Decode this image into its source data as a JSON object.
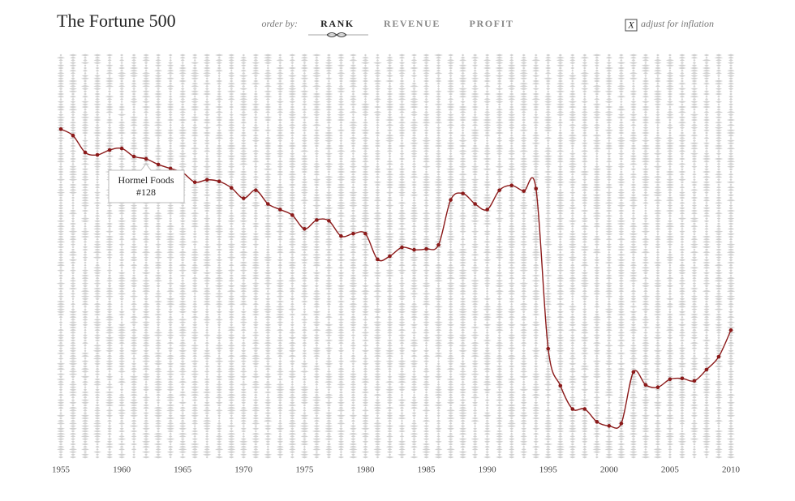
{
  "header": {
    "title": "The Fortune 500",
    "order_label": "order by:",
    "order_options": [
      "RANK",
      "REVENUE",
      "PROFIT"
    ],
    "checkbox_mark": "X",
    "checkbox_label": "adjust for inflation"
  },
  "chart_data": {
    "type": "line",
    "color": "#8b1a1a",
    "x": [
      1955,
      1956,
      1957,
      1958,
      1959,
      1960,
      1961,
      1962,
      1963,
      1964,
      1965,
      1966,
      1967,
      1968,
      1969,
      1970,
      1971,
      1972,
      1973,
      1974,
      1975,
      1976,
      1977,
      1978,
      1979,
      1980,
      1981,
      1982,
      1983,
      1984,
      1985,
      1986,
      1987,
      1988,
      1989,
      1990,
      1991,
      1992,
      1993,
      1994,
      1995,
      1996,
      1997,
      1998,
      1999,
      2000,
      2001,
      2002,
      2003,
      2004,
      2005,
      2006,
      2007,
      2008,
      2009,
      2010
    ],
    "values": [
      91,
      99,
      120,
      123,
      117,
      115,
      125,
      128,
      135,
      140,
      145,
      157,
      154,
      156,
      164,
      177,
      167,
      184,
      191,
      198,
      215,
      204,
      205,
      224,
      221,
      221,
      253,
      249,
      238,
      241,
      240,
      235,
      179,
      171,
      184,
      191,
      167,
      161,
      168,
      165,
      364,
      410,
      439,
      439,
      455,
      460,
      457,
      393,
      409,
      412,
      402,
      401,
      404,
      390,
      374,
      341
    ],
    "xlim": [
      1955,
      2010
    ],
    "xticks": [
      1955,
      1960,
      1965,
      1970,
      1975,
      1980,
      1985,
      1990,
      1995,
      2000,
      2005,
      2010
    ],
    "ylim": [
      500,
      1
    ],
    "tooltip": {
      "name": "Hormel Foods",
      "value_label": "#128"
    }
  }
}
